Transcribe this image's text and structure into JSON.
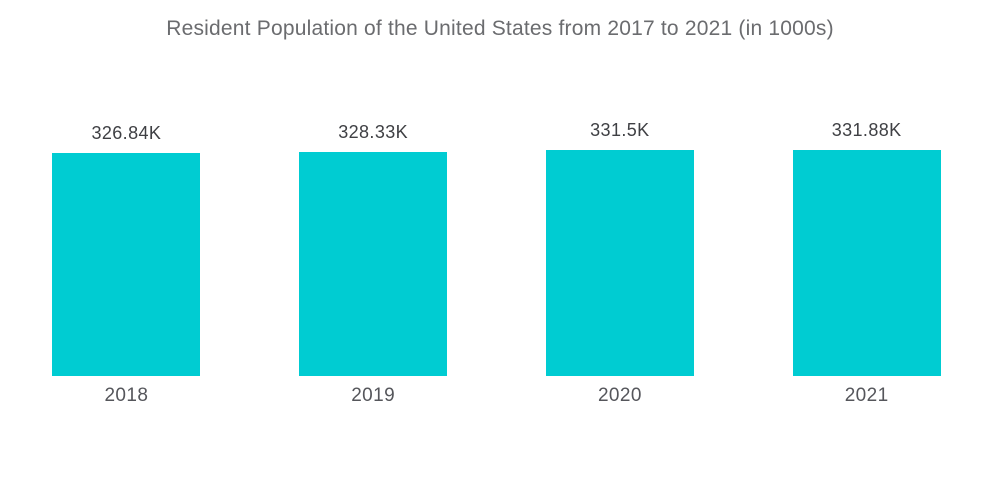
{
  "title": "Resident Population of the United States from 2017 to 2021 (in 1000s)",
  "chart_data": {
    "type": "bar",
    "title": "Resident Population of the United States from 2017 to 2021 (in 1000s)",
    "categories": [
      "2018",
      "2019",
      "2020",
      "2021"
    ],
    "values": [
      326.84,
      328.33,
      331.5,
      331.88
    ],
    "value_labels": [
      "326.84K",
      "328.33K",
      "331.5K",
      "331.88K"
    ],
    "xlabel": "",
    "ylabel": "",
    "ylim": [
      0,
      331.88
    ],
    "grid": false,
    "legend": false,
    "orientation": "vertical"
  },
  "colors": {
    "background": "#FFFFFF",
    "bar": "#00CCD2",
    "title_text": "#6B6C6F",
    "value_text": "#3F4044",
    "category_text": "#55565B"
  }
}
